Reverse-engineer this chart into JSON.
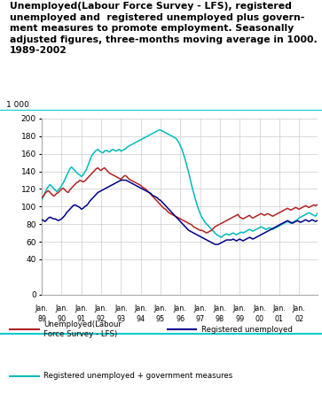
{
  "title": "Unemployed(Labour Force Survey - LFS), registered\nunemployed and  registered unemployed plus govern-\nment measures to promote employment. Seasonally\nadjusted figures, three-months moving average in 1000.\n1989-2002",
  "ylabel_top": "1 000",
  "ylim": [
    0,
    200
  ],
  "yticks": [
    0,
    40,
    60,
    80,
    100,
    120,
    140,
    160,
    180,
    200
  ],
  "ytick_labels": [
    "0",
    "40",
    "60",
    "80",
    "100",
    "120",
    "140",
    "160",
    "180",
    "200"
  ],
  "background_color": "#ffffff",
  "grid_color": "#cccccc",
  "line_lfs_color": "#B22222",
  "line_reg_color": "#00008B",
  "line_gov_color": "#00BBBB",
  "separator_color": "#00CCCC",
  "n_points": 168,
  "x_years": [
    "89",
    "90",
    "91",
    "92",
    "93",
    "94",
    "95",
    "96",
    "97",
    "98",
    "99",
    "00",
    "01",
    "02"
  ],
  "lfs_data": [
    110,
    112,
    115,
    117,
    118,
    116,
    114,
    112,
    113,
    115,
    116,
    118,
    120,
    121,
    119,
    117,
    116,
    119,
    121,
    123,
    125,
    127,
    128,
    130,
    129,
    128,
    129,
    131,
    133,
    135,
    137,
    139,
    141,
    143,
    144,
    142,
    141,
    143,
    144,
    142,
    140,
    138,
    137,
    136,
    135,
    134,
    133,
    132,
    131,
    133,
    135,
    135,
    133,
    131,
    130,
    129,
    128,
    127,
    126,
    125,
    124,
    122,
    121,
    120,
    118,
    116,
    114,
    112,
    110,
    108,
    106,
    104,
    102,
    100,
    98,
    97,
    95,
    93,
    92,
    91,
    90,
    89,
    88,
    87,
    86,
    85,
    84,
    83,
    82,
    81,
    80,
    79,
    77,
    76,
    75,
    74,
    73,
    73,
    72,
    71,
    70,
    71,
    72,
    73,
    75,
    77,
    78,
    79,
    80,
    81,
    82,
    83,
    84,
    85,
    86,
    87,
    88,
    89,
    90,
    91,
    88,
    87,
    86,
    87,
    88,
    89,
    90,
    88,
    87,
    88,
    89,
    90,
    91,
    92,
    91,
    90,
    91,
    92,
    91,
    90,
    89,
    90,
    91,
    92,
    93,
    94,
    95,
    96,
    97,
    98,
    97,
    96,
    97,
    98,
    99,
    98,
    97,
    98,
    99,
    100,
    101,
    100,
    99,
    100,
    101,
    102,
    101,
    102
  ],
  "reg_data": [
    85,
    84,
    83,
    85,
    87,
    88,
    87,
    86,
    86,
    85,
    84,
    85,
    86,
    88,
    90,
    93,
    95,
    97,
    99,
    101,
    102,
    101,
    100,
    99,
    97,
    98,
    100,
    101,
    103,
    106,
    108,
    110,
    112,
    114,
    116,
    117,
    118,
    119,
    120,
    121,
    122,
    123,
    124,
    125,
    126,
    127,
    128,
    129,
    130,
    130,
    130,
    130,
    129,
    128,
    127,
    126,
    125,
    124,
    123,
    122,
    121,
    120,
    119,
    118,
    117,
    116,
    115,
    113,
    112,
    111,
    110,
    108,
    107,
    105,
    103,
    101,
    99,
    97,
    95,
    93,
    91,
    89,
    87,
    85,
    83,
    81,
    79,
    77,
    75,
    73,
    72,
    71,
    70,
    69,
    68,
    67,
    66,
    65,
    64,
    63,
    62,
    61,
    60,
    59,
    58,
    57,
    57,
    57,
    58,
    59,
    60,
    61,
    62,
    62,
    62,
    62,
    63,
    62,
    61,
    62,
    63,
    62,
    61,
    62,
    63,
    64,
    65,
    64,
    63,
    64,
    65,
    66,
    67,
    68,
    69,
    70,
    71,
    72,
    73,
    74,
    75,
    76,
    77,
    78,
    79,
    80,
    81,
    82,
    83,
    84,
    83,
    82,
    81,
    82,
    83,
    84,
    83,
    82,
    83,
    84,
    85,
    84,
    83,
    84,
    85,
    84,
    83,
    84
  ],
  "gov_data": [
    108,
    112,
    116,
    120,
    123,
    125,
    123,
    121,
    119,
    117,
    119,
    121,
    124,
    127,
    131,
    135,
    139,
    143,
    145,
    143,
    141,
    139,
    137,
    136,
    134,
    136,
    139,
    142,
    147,
    152,
    157,
    160,
    162,
    164,
    165,
    163,
    162,
    161,
    163,
    164,
    163,
    162,
    164,
    165,
    164,
    163,
    164,
    165,
    163,
    164,
    165,
    166,
    168,
    169,
    170,
    171,
    172,
    173,
    174,
    175,
    176,
    177,
    178,
    179,
    180,
    181,
    182,
    183,
    184,
    185,
    186,
    187,
    187,
    186,
    185,
    184,
    183,
    182,
    181,
    180,
    179,
    178,
    176,
    173,
    169,
    165,
    159,
    153,
    146,
    139,
    131,
    123,
    116,
    109,
    103,
    97,
    92,
    88,
    85,
    82,
    80,
    78,
    76,
    74,
    72,
    70,
    68,
    67,
    66,
    65,
    67,
    68,
    69,
    68,
    68,
    69,
    70,
    69,
    68,
    69,
    70,
    71,
    70,
    71,
    72,
    73,
    74,
    73,
    72,
    73,
    74,
    75,
    76,
    77,
    76,
    75,
    74,
    75,
    76,
    75,
    74,
    75,
    76,
    77,
    78,
    79,
    80,
    81,
    82,
    83,
    82,
    81,
    82,
    83,
    84,
    85,
    87,
    88,
    89,
    90,
    91,
    92,
    93,
    92,
    91,
    90,
    89,
    92
  ]
}
